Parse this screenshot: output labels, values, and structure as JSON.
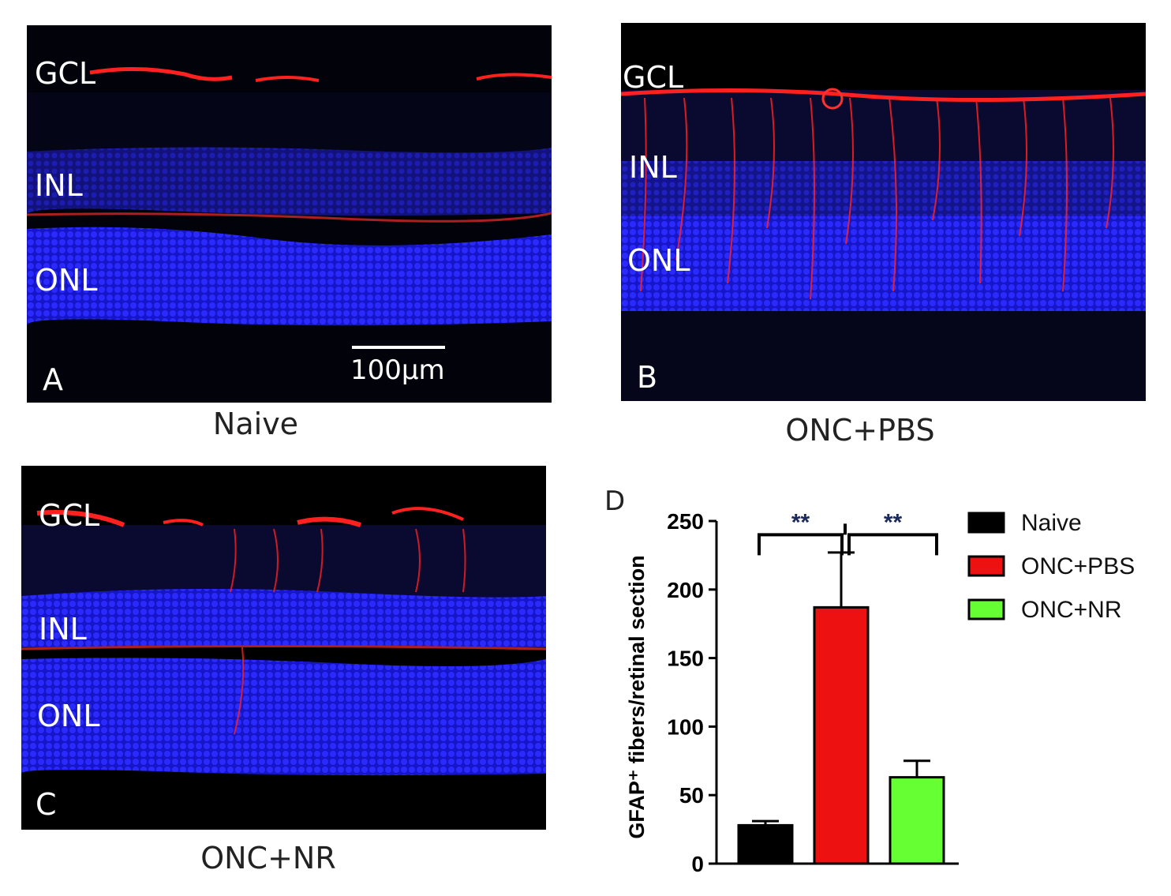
{
  "panels": {
    "A": {
      "letter": "A",
      "caption": "Naive",
      "labels": [
        "GCL",
        "INL",
        "ONL"
      ],
      "scale_bar": "100μm"
    },
    "B": {
      "letter": "B",
      "caption": "ONC+PBS",
      "labels": [
        "GCL",
        "INL",
        "ONL"
      ]
    },
    "C": {
      "letter": "C",
      "caption": "ONC+NR",
      "labels": [
        "GCL",
        "INL",
        "ONL"
      ]
    }
  },
  "panel_D_letter": "D",
  "colors": {
    "nuclei": "#1a1aff",
    "gfap": "#ff1a1a",
    "background": "#000000"
  },
  "chart_data": {
    "type": "bar",
    "categories": [
      "Naive",
      "ONC+PBS",
      "ONC+NR"
    ],
    "values": [
      28,
      187,
      63
    ],
    "errors": [
      3,
      40,
      12
    ],
    "colors": [
      "#000000",
      "#ee1111",
      "#66ff33"
    ],
    "ylabel": "GFAP⁺ fibers/retinal section",
    "ylim": [
      0,
      250
    ],
    "yticks": [
      0,
      50,
      100,
      150,
      200,
      250
    ],
    "legend": [
      {
        "name": "Naive",
        "color": "#000000"
      },
      {
        "name": "ONC+PBS",
        "color": "#ee1111"
      },
      {
        "name": "ONC+NR",
        "color": "#66ff33"
      }
    ],
    "significance": [
      {
        "from": "Naive",
        "to": "ONC+PBS",
        "label": "**"
      },
      {
        "from": "ONC+PBS",
        "to": "ONC+NR",
        "label": "**"
      }
    ]
  }
}
